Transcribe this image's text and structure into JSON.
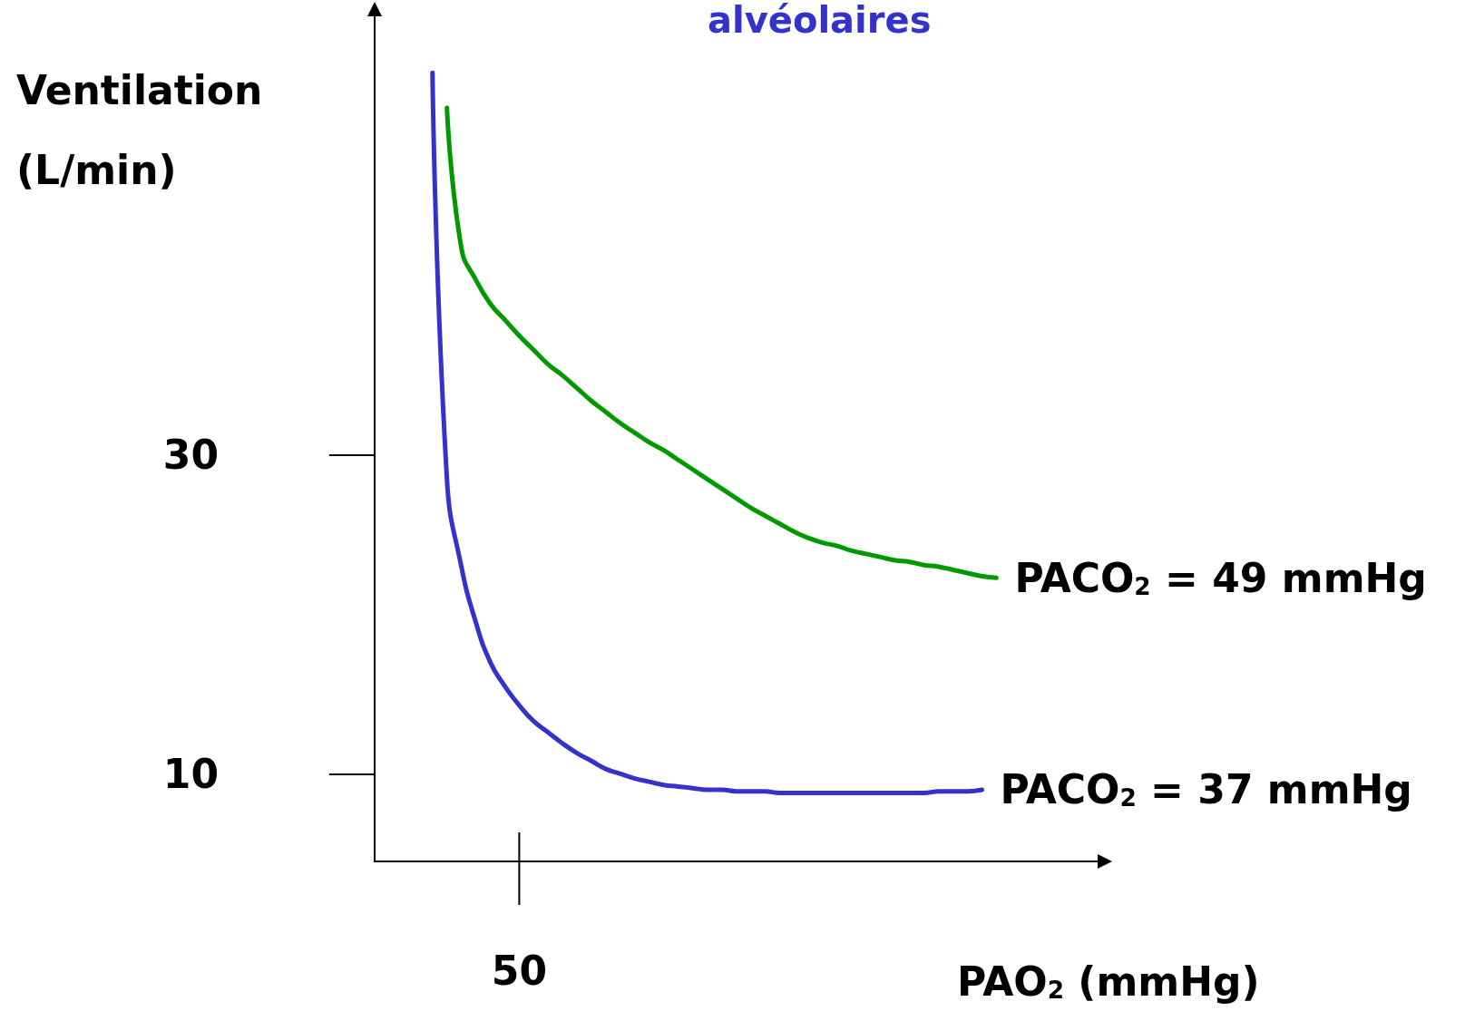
{
  "chart_data": {
    "type": "line",
    "title": "alvéolaires",
    "xlabel": "PAO$_{2}$ (mmHg)",
    "ylabel": "Ventilation (L/min)",
    "annotations": [
      "50"
    ],
    "categories": [
      null,
      null,
      null,
      null,
      null,
      null,
      null,
      null,
      null,
      null,
      null,
      null,
      null,
      null,
      null,
      null,
      null,
      null,
      null,
      null,
      null,
      null,
      null,
      null,
      null,
      null,
      null,
      null,
      null,
      null,
      null,
      null,
      null,
      null,
      null,
      null,
      null,
      null,
      null,
      null,
      null,
      null,
      null,
      null,
      null,
      null,
      null,
      null,
      null,
      null,
      null
    ],
    "ylim": [
      4.5,
      58
    ],
    "yticks": [
      10,
      30
    ],
    "grid": false,
    "legend": false,
    "marker": "none",
    "line_style": "solid",
    "series": [
      {
        "name": "PACO$_{2}$ = 37 mmHg",
        "color": "#3333cc",
        "values": [
          null,
          null,
          null,
          null,
          54,
          28.5,
          23,
          19.5,
          17,
          15.5,
          14.3,
          13.3,
          12.6,
          11.9,
          11.3,
          10.8,
          10.3,
          10.0,
          9.7,
          9.5,
          9.3,
          9.2,
          9.1,
          9.0,
          9.0,
          8.9,
          8.9,
          8.9,
          8.8,
          8.8,
          8.8,
          8.8,
          8.8,
          8.8,
          8.8,
          8.8,
          8.8,
          8.8,
          8.8,
          8.9,
          8.9,
          8.9,
          9.0,
          null,
          null,
          null,
          null,
          null,
          null,
          null,
          null
        ]
      },
      {
        "name": "PACO$_{2}$ = 49 mmHg",
        "color": "#009900",
        "values": [
          null,
          null,
          null,
          null,
          null,
          51.8,
          43,
          41,
          39.5,
          38.5,
          37.5,
          36.6,
          35.7,
          35,
          34.2,
          33.4,
          32.7,
          32,
          31.4,
          30.8,
          30.3,
          29.7,
          29.1,
          28.5,
          27.9,
          27.3,
          26.7,
          26.2,
          25.7,
          25.2,
          24.8,
          24.5,
          24.3,
          24.0,
          23.8,
          23.6,
          23.4,
          23.3,
          23.1,
          23.0,
          22.8,
          22.6,
          22.4,
          22.3,
          null,
          null,
          null,
          null,
          null,
          null,
          null
        ]
      }
    ]
  }
}
